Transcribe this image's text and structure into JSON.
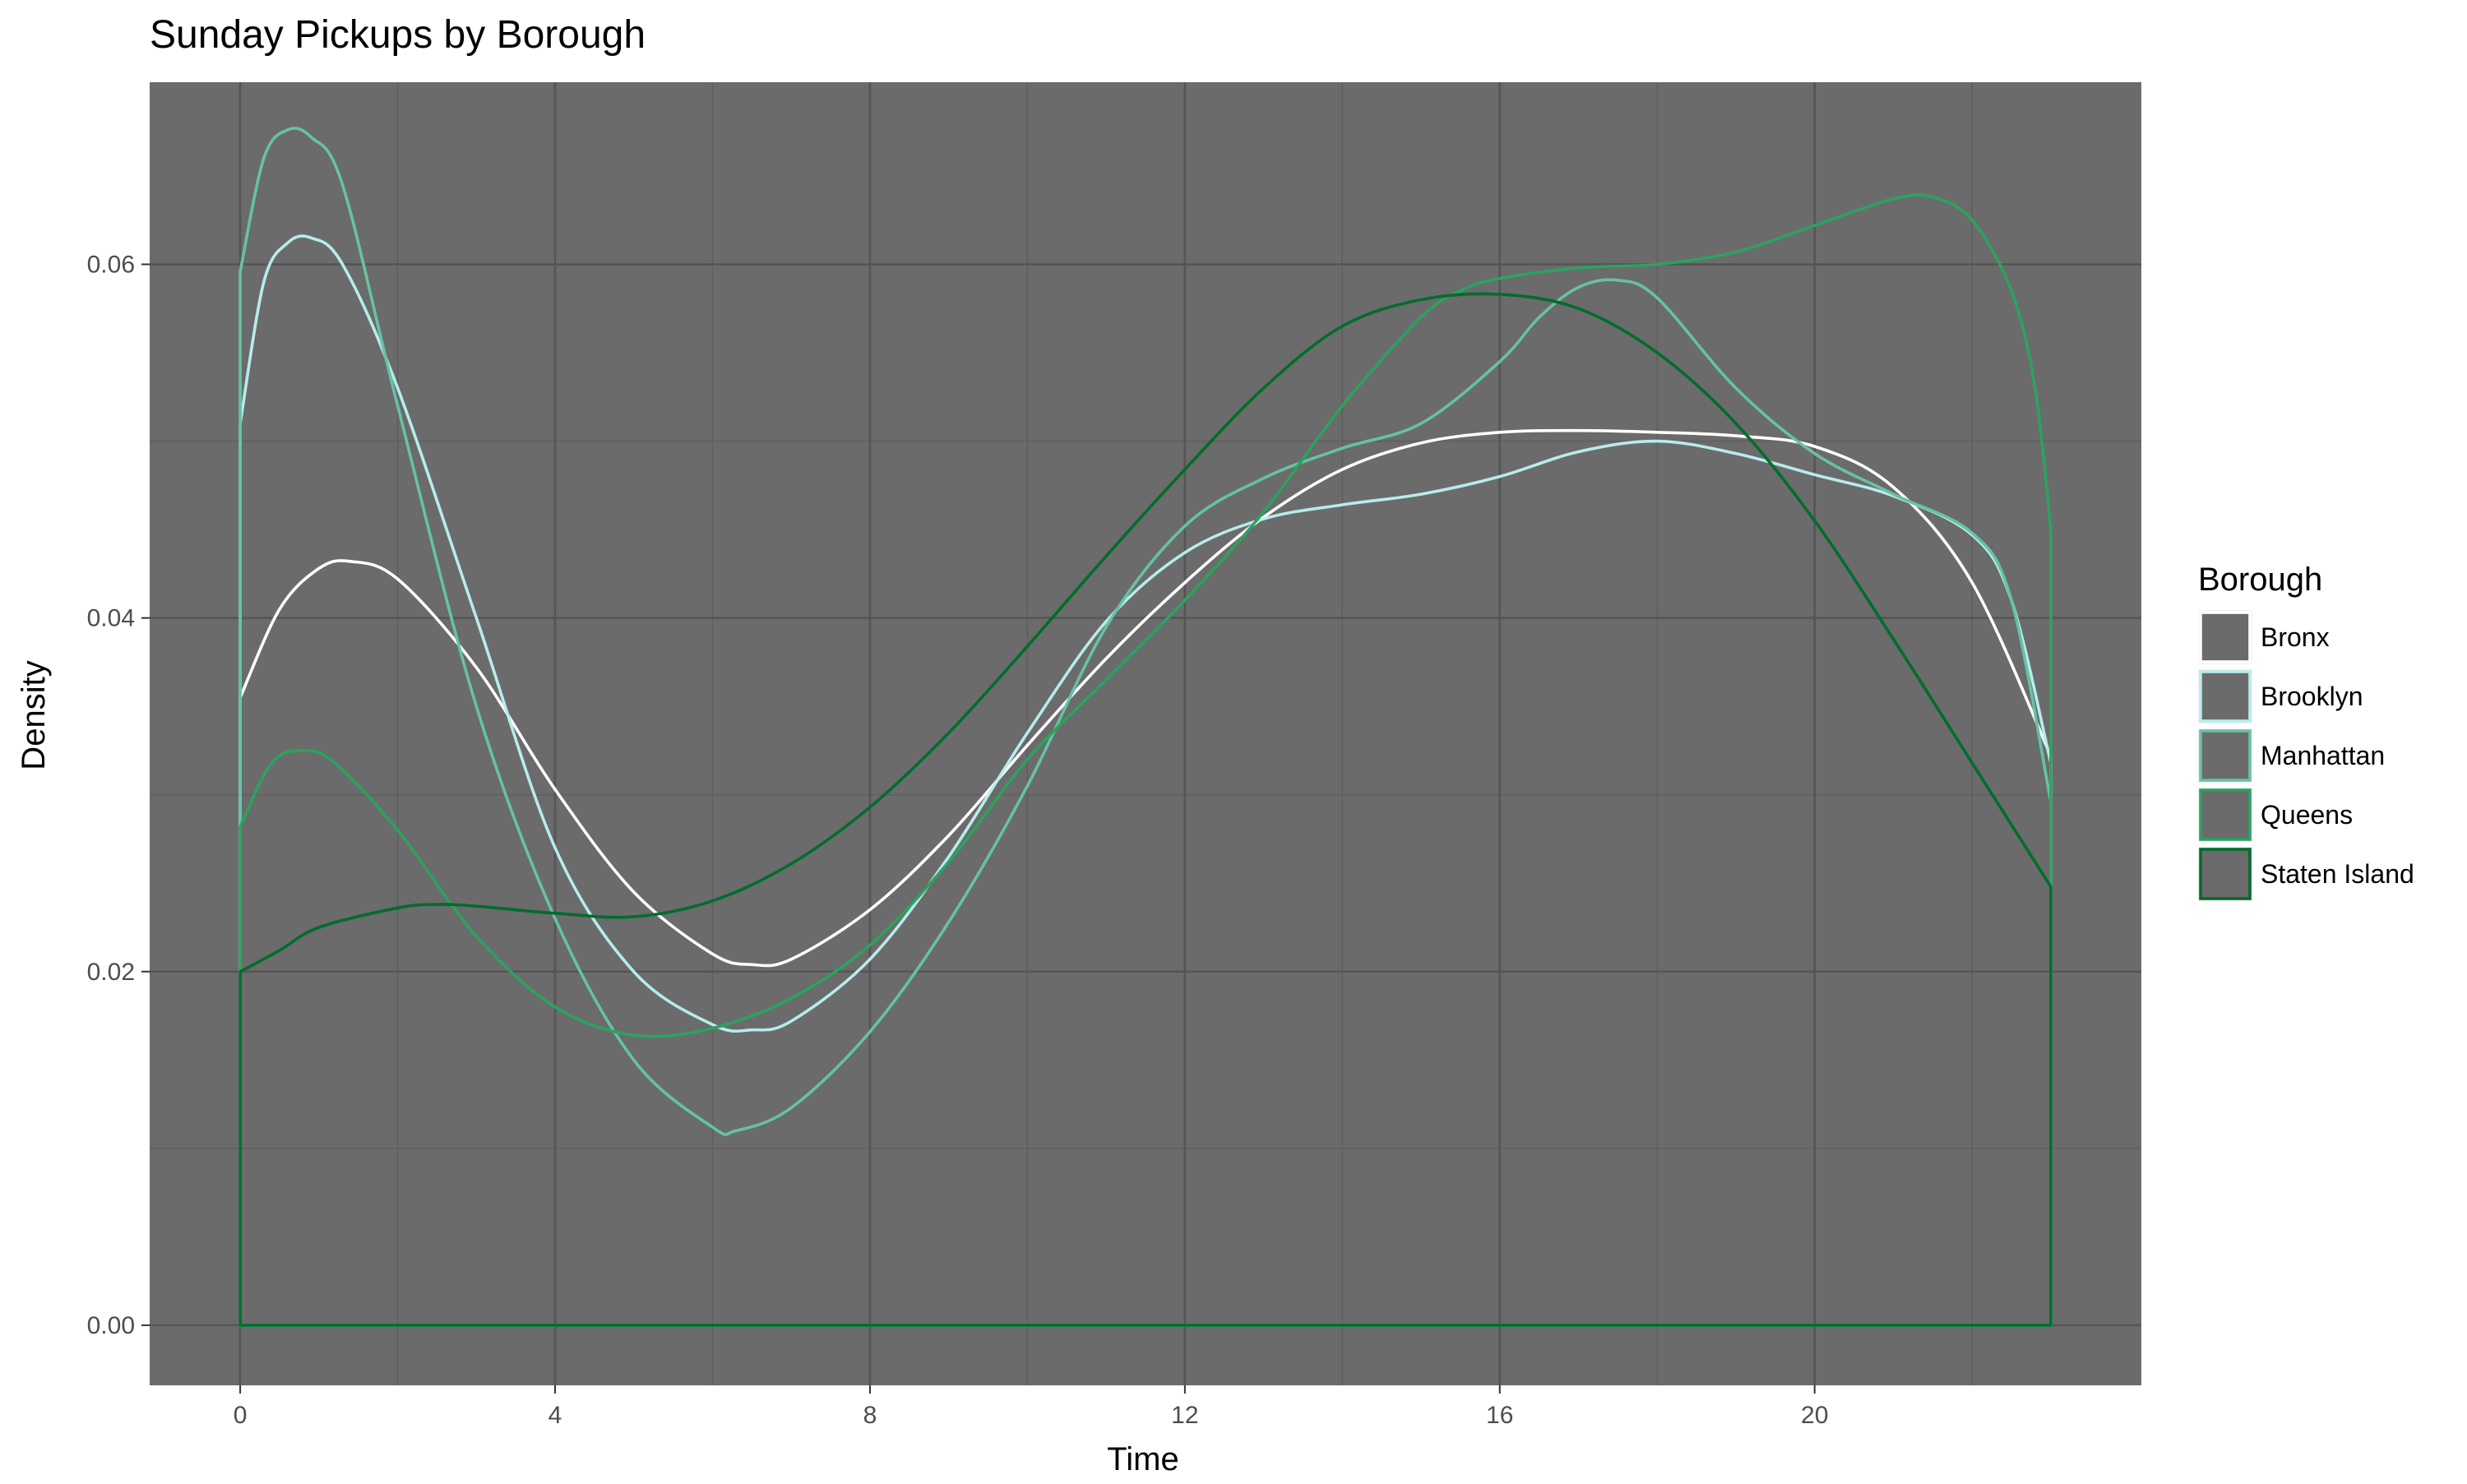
{
  "chart_data": {
    "type": "line",
    "title": "Sunday Pickups by Borough",
    "xlabel": "Time",
    "ylabel": "Density",
    "xlim": [
      -1.15,
      24.15
    ],
    "ylim": [
      -0.0034,
      0.0703
    ],
    "x_ticks": [
      0,
      4,
      8,
      12,
      16,
      20
    ],
    "y_ticks": [
      0.0,
      0.02,
      0.04,
      0.06
    ],
    "y_tick_labels": [
      "0.00",
      "0.02",
      "0.04",
      "0.06"
    ],
    "grid": true,
    "panel_background": "#6b6b6b",
    "legend": {
      "title": "Borough",
      "position": "right"
    },
    "series": [
      {
        "name": "Bronx",
        "color": "#ffffff",
        "x": [
          0,
          0.5,
          1,
          1.4,
          2,
          3,
          4,
          5,
          6,
          6.5,
          7,
          8,
          9,
          10,
          11,
          12,
          13,
          14,
          15,
          16,
          17,
          18,
          19,
          20,
          21,
          22,
          23
        ],
        "y": [
          0.0355,
          0.0405,
          0.0428,
          0.0432,
          0.0422,
          0.0372,
          0.0303,
          0.0245,
          0.021,
          0.0204,
          0.0207,
          0.0235,
          0.0277,
          0.0328,
          0.0377,
          0.042,
          0.0457,
          0.0484,
          0.0499,
          0.0505,
          0.0506,
          0.0505,
          0.0503,
          0.0497,
          0.0474,
          0.042,
          0.0322
        ]
      },
      {
        "name": "Brooklyn",
        "color": "#b6ecec",
        "x": [
          0,
          0.3,
          0.6,
          0.9,
          1.3,
          2,
          3,
          4,
          5,
          6,
          6.5,
          7,
          8,
          9,
          10,
          11,
          12,
          13,
          14,
          15,
          16,
          17,
          18,
          19,
          20,
          21,
          22,
          22.5,
          23
        ],
        "y": [
          0.051,
          0.059,
          0.0612,
          0.0615,
          0.06,
          0.053,
          0.04,
          0.027,
          0.02,
          0.017,
          0.0167,
          0.0172,
          0.0207,
          0.0265,
          0.0335,
          0.0398,
          0.0437,
          0.0456,
          0.0464,
          0.047,
          0.048,
          0.0494,
          0.05,
          0.0493,
          0.0481,
          0.0469,
          0.0447,
          0.041,
          0.0318
        ]
      },
      {
        "name": "Manhattan",
        "color": "#66c2a4",
        "x": [
          0,
          0.3,
          0.6,
          0.9,
          1.3,
          2,
          3,
          4,
          5,
          6,
          6.3,
          7,
          8,
          9,
          10,
          11,
          12,
          13,
          14,
          15,
          16,
          16.5,
          17,
          17.5,
          18,
          19,
          20,
          21,
          22,
          22.5,
          23
        ],
        "y": [
          0.0596,
          0.066,
          0.0676,
          0.0672,
          0.0645,
          0.052,
          0.035,
          0.023,
          0.015,
          0.0112,
          0.011,
          0.0123,
          0.0166,
          0.0228,
          0.0305,
          0.0395,
          0.0452,
          0.0479,
          0.0496,
          0.051,
          0.0545,
          0.057,
          0.0587,
          0.0591,
          0.0581,
          0.053,
          0.0493,
          0.047,
          0.0448,
          0.041,
          0.0296
        ]
      },
      {
        "name": "Queens",
        "color": "#2ca25f",
        "x": [
          0,
          0.4,
          0.8,
          1.2,
          2,
          3,
          4,
          5,
          6,
          7,
          8,
          9,
          10,
          11,
          12,
          13,
          14,
          15,
          15.5,
          16,
          17,
          18,
          19,
          20,
          21,
          21.5,
          22,
          22.5,
          22.8,
          23
        ],
        "y": [
          0.0282,
          0.0318,
          0.0325,
          0.0318,
          0.028,
          0.022,
          0.018,
          0.0164,
          0.0168,
          0.0185,
          0.0215,
          0.0262,
          0.032,
          0.0365,
          0.041,
          0.046,
          0.052,
          0.057,
          0.0585,
          0.0592,
          0.0598,
          0.06,
          0.0607,
          0.0622,
          0.0637,
          0.0638,
          0.0625,
          0.0585,
          0.053,
          0.045
        ]
      },
      {
        "name": "Staten Island",
        "color": "#006d2c",
        "x": [
          0,
          0.5,
          1,
          2,
          2.5,
          3,
          4,
          5,
          6,
          7,
          8,
          9,
          10,
          11,
          12,
          13,
          14,
          15,
          16,
          17,
          18,
          19,
          20,
          21,
          22,
          23
        ],
        "y": [
          0.02,
          0.0212,
          0.0225,
          0.0236,
          0.0238,
          0.0237,
          0.0233,
          0.0231,
          0.024,
          0.0261,
          0.0293,
          0.0335,
          0.0384,
          0.0435,
          0.0484,
          0.053,
          0.0565,
          0.058,
          0.0583,
          0.0575,
          0.055,
          0.051,
          0.0455,
          0.0388,
          0.0318,
          0.0248
        ]
      }
    ]
  }
}
